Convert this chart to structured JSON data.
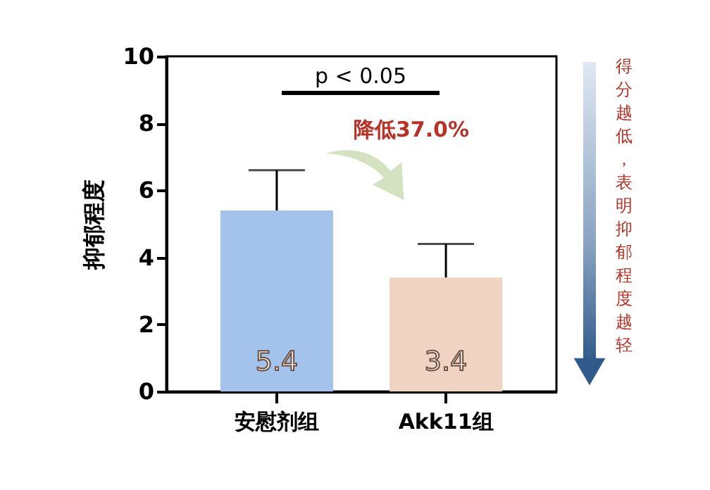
{
  "chart_data": {
    "type": "bar",
    "categories": [
      "安慰剂组",
      "Akk11组"
    ],
    "values": [
      5.4,
      3.4
    ],
    "colors": [
      "#a3c3ec",
      "#f1d3c3"
    ],
    "errors": [
      [
        5.4,
        6.6
      ],
      [
        3.4,
        4.4
      ]
    ],
    "data_labels": true,
    "ylabel": "抑郁程度",
    "ylim": [
      0,
      10
    ],
    "yticks": [
      0,
      2,
      4,
      6,
      8,
      10
    ],
    "grid": false,
    "annotations": [
      "p < 0.05",
      "降低37.0%",
      "得分越低，表明抑郁程度越轻"
    ]
  }
}
